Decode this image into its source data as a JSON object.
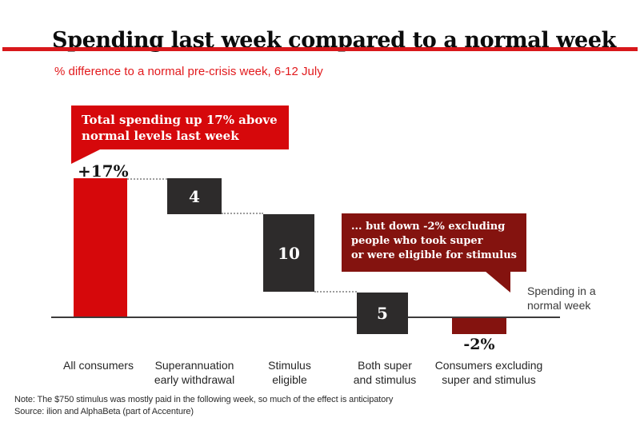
{
  "colors": {
    "red": "#d6080b",
    "maroon": "#84130f",
    "dark": "#2d2b2b",
    "divider_red": "#d8181b",
    "subtitle_red": "#e21a1d",
    "axis": "#3d3b3b"
  },
  "chart_data": {
    "type": "bar",
    "subtype": "waterfall",
    "title": "Spending last week compared to a normal week",
    "subtitle": "% difference to a normal pre-crisis week, 6-12 July",
    "baseline": 0,
    "grid": false,
    "bars": [
      {
        "category": "All consumers",
        "label_lines": [
          "All consumers"
        ],
        "value": 17,
        "kind": "total",
        "color_key": "red",
        "bar_label": "",
        "outside_label": "+17%"
      },
      {
        "category": "Superannuation early withdrawal",
        "label_lines": [
          "Superannuation",
          "early withdrawal"
        ],
        "value": -4,
        "kind": "step",
        "color_key": "dark",
        "bar_label": "4",
        "outside_label": ""
      },
      {
        "category": "Stimulus eligible",
        "label_lines": [
          "Stimulus",
          "eligible"
        ],
        "value": -10,
        "kind": "step",
        "color_key": "dark",
        "bar_label": "10",
        "outside_label": ""
      },
      {
        "category": "Both super and stimulus",
        "label_lines": [
          "Both super",
          "and stimulus"
        ],
        "value": -5,
        "kind": "step",
        "color_key": "dark",
        "bar_label": "5",
        "outside_label": ""
      },
      {
        "category": "Consumers excluding super and stimulus",
        "label_lines": [
          "Consumers excluding",
          "super and stimulus"
        ],
        "value": -2,
        "kind": "total",
        "color_key": "maroon",
        "bar_label": "",
        "outside_label": "-2%"
      }
    ],
    "baseline_label_lines": [
      "Spending in a",
      "normal week"
    ],
    "annotations": [
      {
        "id": "up",
        "lines": [
          "Total spending up 17% above",
          "normal levels last week"
        ],
        "color_key": "red"
      },
      {
        "id": "down",
        "lines": [
          "... but down -2% excluding",
          "people who took super",
          "or were eligible for stimulus"
        ],
        "color_key": "maroon"
      }
    ]
  },
  "footer": {
    "note": "Note: The $750 stimulus was mostly paid in the following week, so much of the effect is anticipatory",
    "source": "Source: ilion and AlphaBeta (part of Accenture)"
  }
}
